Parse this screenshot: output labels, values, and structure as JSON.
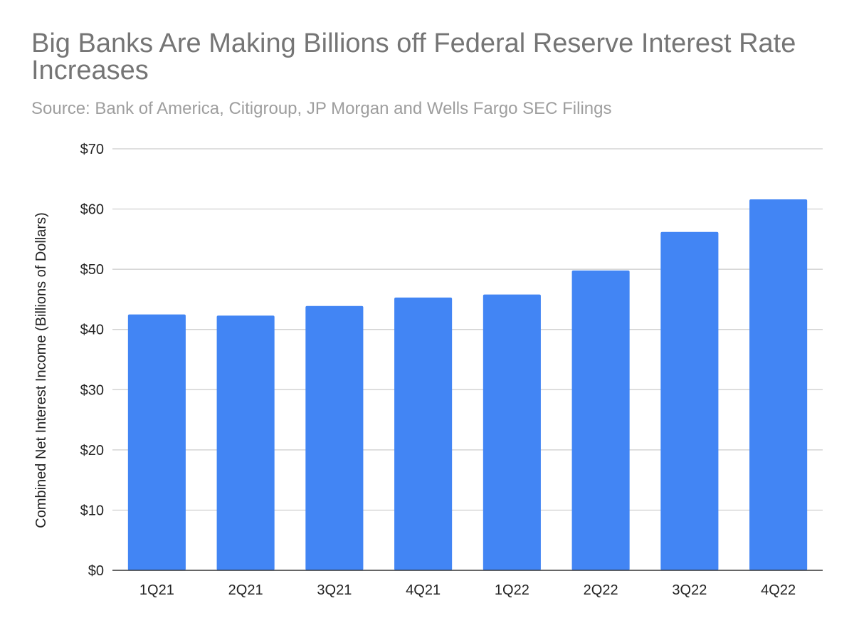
{
  "chart_data": {
    "type": "bar",
    "title": "Big Banks Are Making Billions off Federal Reserve Interest Rate Increases",
    "subtitle": "Source: Bank of America, Citigroup, JP Morgan and Wells Fargo SEC Filings",
    "xlabel": "",
    "ylabel": "Combined Net Interest Income (Billions of Dollars)",
    "categories": [
      "1Q21",
      "2Q21",
      "3Q21",
      "4Q21",
      "1Q22",
      "2Q22",
      "3Q22",
      "4Q22"
    ],
    "values": [
      42.5,
      42.3,
      43.9,
      45.3,
      45.8,
      49.8,
      56.2,
      61.6
    ],
    "ylim": [
      0,
      70
    ],
    "yticks": [
      0,
      10,
      20,
      30,
      40,
      50,
      60,
      70
    ],
    "ytick_labels": [
      "$0",
      "$10",
      "$20",
      "$30",
      "$40",
      "$50",
      "$60",
      "$70"
    ],
    "grid": true,
    "legend": "none",
    "colors": {
      "bar": "#4285f4",
      "grid": "#cccccc",
      "axis": "#333333",
      "title": "#757575",
      "subtitle": "#9e9e9e",
      "tick_text": "#222222"
    }
  }
}
